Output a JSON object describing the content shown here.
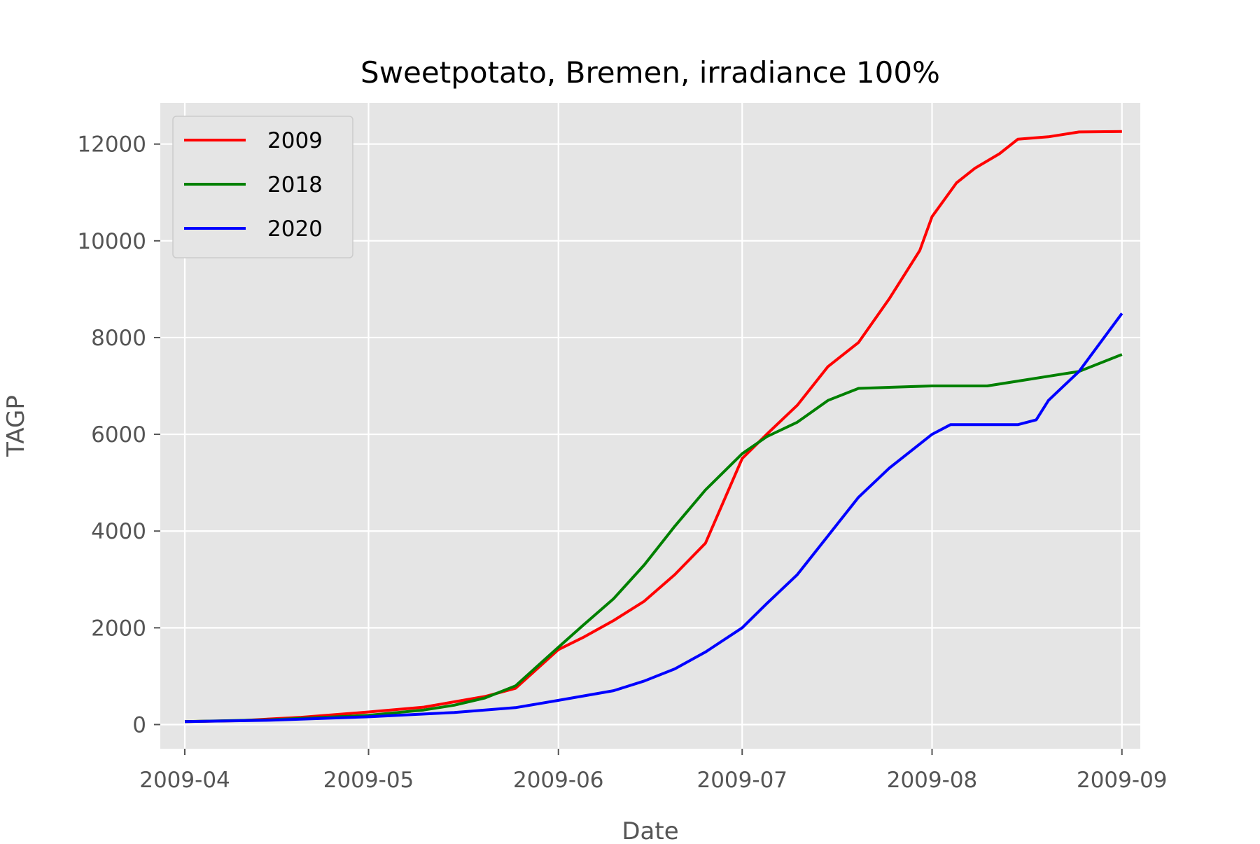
{
  "chart_data": {
    "type": "line",
    "title": "Sweetpotato, Bremen, irradiance 100%",
    "xlabel": "Date",
    "ylabel": "TAGP",
    "xlim": [
      "2009-03-28",
      "2009-09-04"
    ],
    "ylim": [
      -500,
      12850
    ],
    "x_ticks": [
      "2009-04",
      "2009-05",
      "2009-06",
      "2009-07",
      "2009-08",
      "2009-09"
    ],
    "x_tick_dates": [
      "2009-04-01",
      "2009-05-01",
      "2009-06-01",
      "2009-07-01",
      "2009-08-01",
      "2009-09-01"
    ],
    "y_ticks": [
      "0",
      "2000",
      "4000",
      "6000",
      "8000",
      "10000",
      "12000"
    ],
    "y_tick_values": [
      0,
      2000,
      4000,
      6000,
      8000,
      10000,
      12000
    ],
    "grid": true,
    "legend_position": "top-left",
    "series": [
      {
        "name": "2009",
        "color": "#ff0000",
        "points": [
          [
            "2009-04-01",
            60
          ],
          [
            "2009-04-10",
            80
          ],
          [
            "2009-04-20",
            150
          ],
          [
            "2009-05-01",
            260
          ],
          [
            "2009-05-10",
            360
          ],
          [
            "2009-05-20",
            580
          ],
          [
            "2009-05-25",
            750
          ],
          [
            "2009-06-01",
            1550
          ],
          [
            "2009-06-05",
            1800
          ],
          [
            "2009-06-10",
            2150
          ],
          [
            "2009-06-15",
            2550
          ],
          [
            "2009-06-20",
            3100
          ],
          [
            "2009-06-25",
            3750
          ],
          [
            "2009-07-01",
            5500
          ],
          [
            "2009-07-05",
            6000
          ],
          [
            "2009-07-10",
            6600
          ],
          [
            "2009-07-15",
            7400
          ],
          [
            "2009-07-20",
            7900
          ],
          [
            "2009-07-25",
            8800
          ],
          [
            "2009-07-30",
            9800
          ],
          [
            "2009-08-01",
            10500
          ],
          [
            "2009-08-05",
            11200
          ],
          [
            "2009-08-08",
            11500
          ],
          [
            "2009-08-12",
            11800
          ],
          [
            "2009-08-15",
            12100
          ],
          [
            "2009-08-20",
            12150
          ],
          [
            "2009-08-25",
            12250
          ],
          [
            "2009-09-01",
            12260
          ]
        ]
      },
      {
        "name": "2018",
        "color": "#008000",
        "points": [
          [
            "2009-04-01",
            60
          ],
          [
            "2009-04-15",
            100
          ],
          [
            "2009-05-01",
            190
          ],
          [
            "2009-05-10",
            300
          ],
          [
            "2009-05-15",
            400
          ],
          [
            "2009-05-20",
            550
          ],
          [
            "2009-05-25",
            800
          ],
          [
            "2009-06-01",
            1600
          ],
          [
            "2009-06-05",
            2050
          ],
          [
            "2009-06-10",
            2600
          ],
          [
            "2009-06-15",
            3300
          ],
          [
            "2009-06-20",
            4100
          ],
          [
            "2009-06-25",
            4850
          ],
          [
            "2009-07-01",
            5600
          ],
          [
            "2009-07-05",
            5950
          ],
          [
            "2009-07-10",
            6250
          ],
          [
            "2009-07-15",
            6700
          ],
          [
            "2009-07-20",
            6950
          ],
          [
            "2009-08-01",
            7000
          ],
          [
            "2009-08-10",
            7000
          ],
          [
            "2009-08-15",
            7100
          ],
          [
            "2009-08-20",
            7200
          ],
          [
            "2009-08-25",
            7300
          ],
          [
            "2009-09-01",
            7650
          ]
        ]
      },
      {
        "name": "2020",
        "color": "#0000ff",
        "points": [
          [
            "2009-04-01",
            60
          ],
          [
            "2009-04-15",
            90
          ],
          [
            "2009-05-01",
            160
          ],
          [
            "2009-05-15",
            250
          ],
          [
            "2009-05-25",
            350
          ],
          [
            "2009-06-01",
            500
          ],
          [
            "2009-06-10",
            700
          ],
          [
            "2009-06-15",
            900
          ],
          [
            "2009-06-20",
            1150
          ],
          [
            "2009-06-25",
            1500
          ],
          [
            "2009-07-01",
            2000
          ],
          [
            "2009-07-05",
            2500
          ],
          [
            "2009-07-10",
            3100
          ],
          [
            "2009-07-15",
            3900
          ],
          [
            "2009-07-20",
            4700
          ],
          [
            "2009-07-25",
            5300
          ],
          [
            "2009-08-01",
            6000
          ],
          [
            "2009-08-04",
            6200
          ],
          [
            "2009-08-15",
            6200
          ],
          [
            "2009-08-18",
            6300
          ],
          [
            "2009-08-20",
            6700
          ],
          [
            "2009-08-25",
            7300
          ],
          [
            "2009-09-01",
            8500
          ]
        ]
      }
    ]
  }
}
